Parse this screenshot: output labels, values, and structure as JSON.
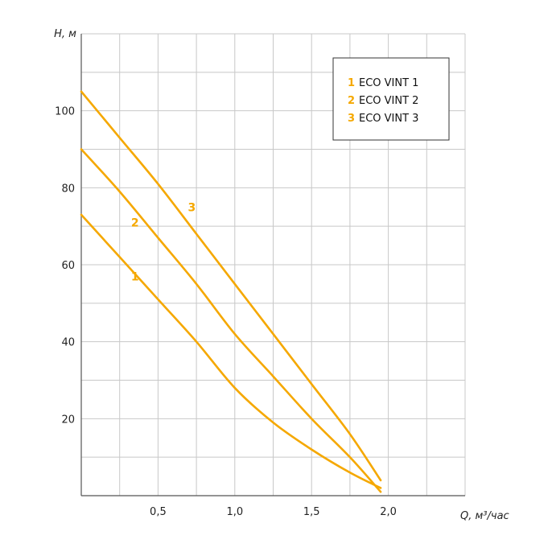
{
  "chart_data": {
    "type": "line",
    "title": "",
    "ylabel": "H, м",
    "xlabel": "Q, м³/час",
    "xlim": [
      0,
      2.5
    ],
    "ylim": [
      0,
      120
    ],
    "grid": true,
    "x_ticks": [
      0.5,
      1.0,
      1.5,
      2.0
    ],
    "x_tick_labels": [
      "0,5",
      "1,0",
      "1,5",
      "2,0"
    ],
    "x_minor_step": 0.25,
    "y_ticks": [
      20,
      40,
      60,
      80,
      100
    ],
    "y_tick_labels": [
      "20",
      "40",
      "60",
      "80",
      "100"
    ],
    "y_minor_step": 10,
    "legend_position": "top-right",
    "line_color": "#f5a800",
    "series": [
      {
        "name": "ECO VINT 1",
        "number": "1",
        "label": "1",
        "label_at": [
          0.35,
          57
        ],
        "points": [
          [
            0,
            73
          ],
          [
            0.25,
            62
          ],
          [
            0.5,
            51
          ],
          [
            0.75,
            40
          ],
          [
            1.0,
            28
          ],
          [
            1.25,
            19
          ],
          [
            1.5,
            12
          ],
          [
            1.75,
            6
          ],
          [
            1.95,
            2
          ]
        ]
      },
      {
        "name": "ECO VINT 2",
        "number": "2",
        "label": "2",
        "label_at": [
          0.35,
          71
        ],
        "points": [
          [
            0,
            90
          ],
          [
            0.25,
            79
          ],
          [
            0.5,
            67
          ],
          [
            0.75,
            55
          ],
          [
            1.0,
            42
          ],
          [
            1.25,
            31
          ],
          [
            1.5,
            20
          ],
          [
            1.75,
            10
          ],
          [
            1.95,
            1
          ]
        ]
      },
      {
        "name": "ECO VINT 3",
        "number": "3",
        "label": "3",
        "label_at": [
          0.72,
          75
        ],
        "points": [
          [
            0,
            105
          ],
          [
            0.25,
            93
          ],
          [
            0.5,
            81
          ],
          [
            0.75,
            68
          ],
          [
            1.0,
            55
          ],
          [
            1.25,
            42
          ],
          [
            1.5,
            29
          ],
          [
            1.75,
            16
          ],
          [
            1.95,
            4
          ]
        ]
      }
    ]
  }
}
